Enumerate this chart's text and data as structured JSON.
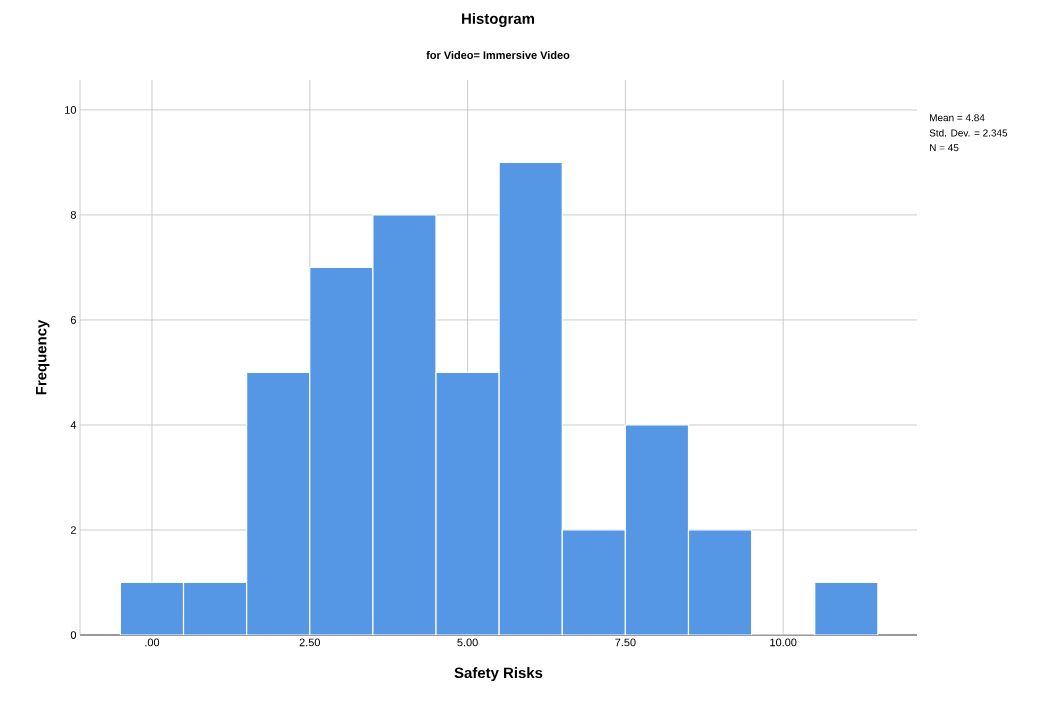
{
  "chart_data": {
    "type": "histogram",
    "title": "Histogram",
    "subtitle": "for Video= Immersive Video",
    "xlabel": "Safety Risks",
    "ylabel": "Frequency",
    "bins": [
      -0.5,
      0.5,
      1.5,
      2.5,
      3.5,
      4.5,
      5.5,
      6.5,
      7.5,
      8.5,
      9.5,
      10.5,
      11.5
    ],
    "values": [
      1,
      1,
      5,
      7,
      8,
      5,
      9,
      2,
      4,
      2,
      0,
      1
    ],
    "color": "#5596e5",
    "xlim": [
      -1.14,
      12.12
    ],
    "ylim": [
      0,
      10.57
    ],
    "xticks": [
      {
        "value": 0,
        "label": ".00"
      },
      {
        "value": 2.5,
        "label": "2.50"
      },
      {
        "value": 5,
        "label": "5.00"
      },
      {
        "value": 7.5,
        "label": "7.50"
      },
      {
        "value": 10,
        "label": "10.00"
      }
    ],
    "yticks": [
      0,
      2,
      4,
      6,
      8,
      10
    ],
    "grid": true,
    "annotations": [
      "Mean = 4.84",
      "Std. Dev. = 2.345",
      "N = 45"
    ]
  }
}
